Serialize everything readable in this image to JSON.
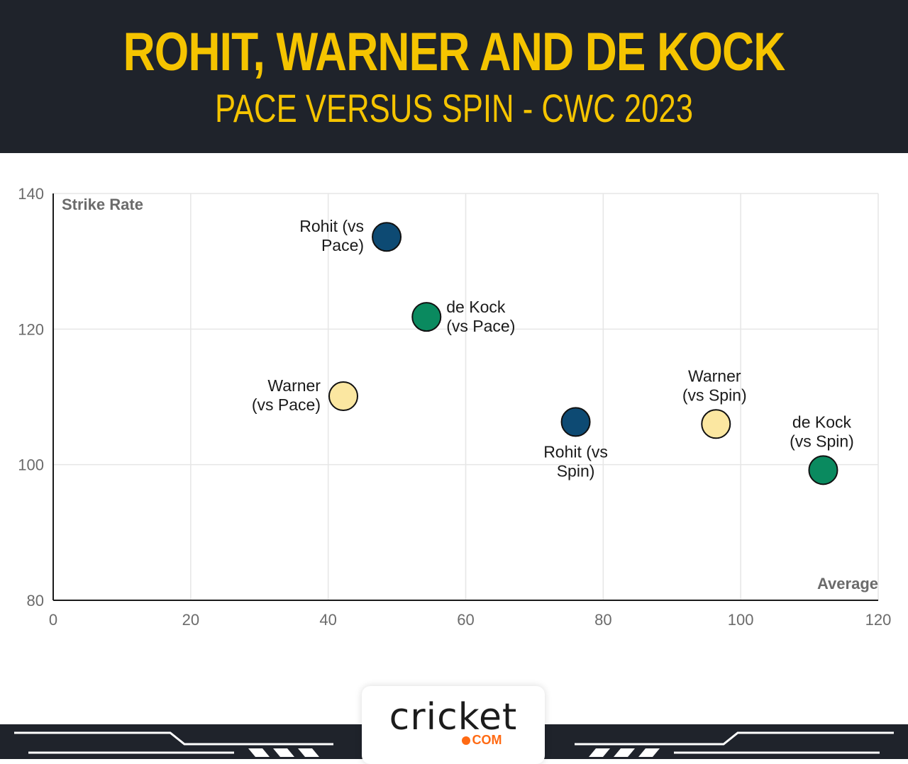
{
  "header": {
    "title": "ROHIT, WARNER AND DE KOCK",
    "subtitle": "PACE VERSUS SPIN - CWC 2023"
  },
  "chart_data": {
    "type": "scatter",
    "xlabel": "Average",
    "ylabel": "Strike Rate",
    "xlim": [
      0,
      120
    ],
    "ylim": [
      80,
      140
    ],
    "x_ticks": [
      0,
      20,
      40,
      60,
      80,
      100,
      120
    ],
    "y_ticks": [
      80,
      100,
      120,
      140
    ],
    "grid": true,
    "points": [
      {
        "label": "Rohit (vs Pace)",
        "lines": [
          "Rohit (vs",
          "Pace)"
        ],
        "x": 48.5,
        "y": 133.6,
        "color": "#0d4a73",
        "label_side": "left"
      },
      {
        "label": "de Kock (vs Pace)",
        "lines": [
          "de Kock",
          "(vs Pace)"
        ],
        "x": 54.3,
        "y": 121.8,
        "color": "#0a8a5f",
        "label_side": "right"
      },
      {
        "label": "Warner (vs Pace)",
        "lines": [
          "Warner",
          "(vs Pace)"
        ],
        "x": 42.2,
        "y": 110.1,
        "color": "#fbe7a1",
        "label_side": "left"
      },
      {
        "label": "Rohit (vs Spin)",
        "lines": [
          "Rohit (vs",
          "Spin)"
        ],
        "x": 76.0,
        "y": 106.3,
        "color": "#0d4a73",
        "label_side": "below"
      },
      {
        "label": "Warner (vs Spin)",
        "lines": [
          "Warner",
          "(vs Spin)"
        ],
        "x": 96.4,
        "y": 106.0,
        "color": "#fbe7a1",
        "label_side": "above"
      },
      {
        "label": "de Kock (vs Spin)",
        "lines": [
          "de Kock",
          "(vs Spin)"
        ],
        "x": 112.0,
        "y": 99.2,
        "color": "#0a8a5f",
        "label_side": "above"
      }
    ]
  },
  "footer": {
    "logo_text": "cricket",
    "logo_sub": "COM",
    "accent": "#ff6a13"
  }
}
